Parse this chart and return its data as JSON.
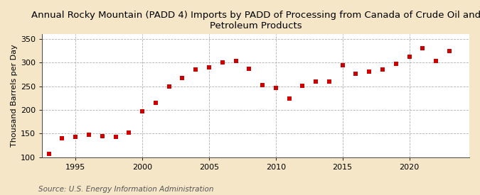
{
  "title": "Annual Rocky Mountain (PADD 4) Imports by PADD of Processing from Canada of Crude Oil and\nPetroleum Products",
  "ylabel": "Thousand Barrels per Day",
  "source": "Source: U.S. Energy Information Administration",
  "background_color": "#f5e6c8",
  "plot_background_color": "#ffffff",
  "marker_color": "#cc0000",
  "years": [
    1993,
    1994,
    1995,
    1996,
    1997,
    1998,
    1999,
    2000,
    2001,
    2002,
    2003,
    2004,
    2005,
    2006,
    2007,
    2008,
    2009,
    2010,
    2011,
    2012,
    2013,
    2014,
    2015,
    2016,
    2017,
    2018,
    2019,
    2020,
    2021,
    2022,
    2023
  ],
  "values": [
    107,
    140,
    143,
    147,
    144,
    143,
    152,
    197,
    215,
    249,
    267,
    286,
    290,
    301,
    303,
    287,
    253,
    247,
    224,
    251,
    260,
    260,
    294,
    276,
    281,
    285,
    298,
    313,
    331,
    303,
    325
  ],
  "ylim": [
    100,
    360
  ],
  "yticks": [
    100,
    150,
    200,
    250,
    300,
    350
  ],
  "xlim": [
    1992.5,
    2024.5
  ],
  "xticks": [
    1995,
    2000,
    2005,
    2010,
    2015,
    2020
  ],
  "grid_color": "#b0b0b0",
  "title_fontsize": 9.5,
  "axis_fontsize": 8,
  "source_fontsize": 7.5,
  "marker_size": 22
}
